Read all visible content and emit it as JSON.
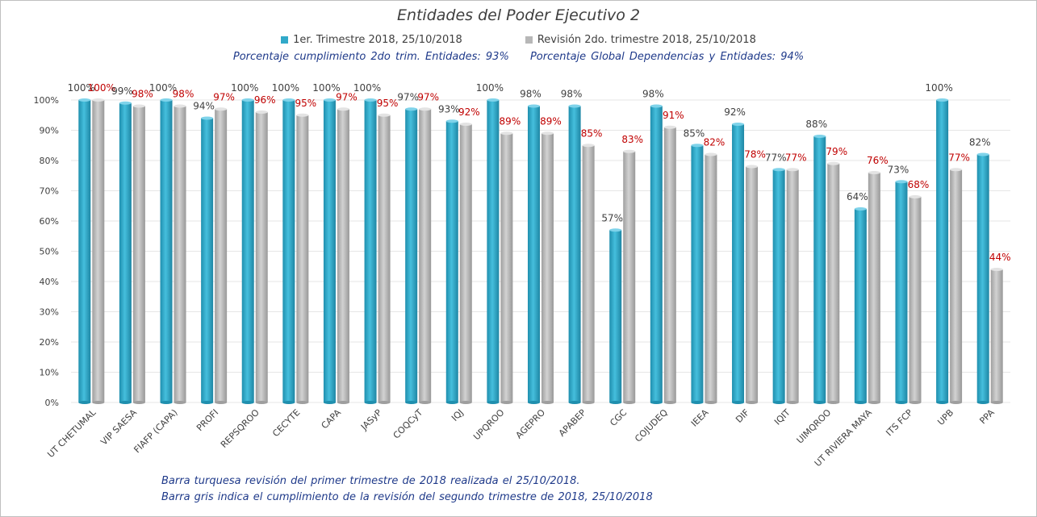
{
  "chart_data": {
    "type": "bar",
    "title": "Entidades del Poder Ejecutivo 2",
    "categories": [
      "UT CHETUMAL",
      "VIP SAESA",
      "FIAFP (CAPA)",
      "PROFI",
      "REPSQROO",
      "CECYTE",
      "CAPA",
      "JASyP",
      "COQCyT",
      "IQJ",
      "UPQROO",
      "AGEPRO",
      "APABEP",
      "CGC",
      "COJUDEQ",
      "IEEA",
      "DIF",
      "IQIT",
      "UIMQROO",
      "UT RIVIERA MAYA",
      "ITS FCP",
      "UPB",
      "PPA"
    ],
    "series": [
      {
        "name": "1er. Trimestre 2018, 25/10/2018",
        "color": "#31a9c9",
        "label_color": "#404040",
        "values": [
          100,
          99,
          100,
          94,
          100,
          100,
          100,
          100,
          97,
          93,
          100,
          98,
          98,
          57,
          98,
          85,
          92,
          77,
          88,
          64,
          73,
          100,
          82
        ],
        "labels": [
          "100%",
          "99%",
          "100%",
          "94%",
          "100%",
          "100%",
          "100%",
          "100%",
          "97%",
          "93%",
          "100%",
          "98%",
          "98%",
          "57%",
          "98%",
          "85%",
          "92%",
          "77%",
          "88%",
          "64%",
          "73%",
          "100%",
          "82%"
        ]
      },
      {
        "name": "Revisión 2do. trimestre 2018, 25/10/2018",
        "color": "#b7b7b7",
        "label_color": "#c00000",
        "values": [
          100,
          98,
          98,
          97,
          96,
          95,
          97,
          95,
          97,
          92,
          89,
          89,
          85,
          83,
          91,
          82,
          78,
          77,
          79,
          76,
          68,
          77,
          44
        ],
        "labels": [
          "100%",
          "98%",
          "98%",
          "97%",
          "96%",
          "95%",
          "97%",
          "95%",
          "97%",
          "92%",
          "89%",
          "89%",
          "85%",
          "83%",
          "91%",
          "82%",
          "78%",
          "77%",
          "79%",
          "76%",
          "68%",
          "77%",
          "44%"
        ]
      }
    ],
    "yticks": [
      "0%",
      "10%",
      "20%",
      "30%",
      "40%",
      "50%",
      "60%",
      "70%",
      "80%",
      "90%",
      "100%"
    ],
    "ylim": [
      0,
      100
    ],
    "grid": true,
    "legend_position": "top"
  },
  "summary": {
    "entidades": "Porcentaje cumplimiento 2do trim. Entidades: 93%",
    "global": "Porcentaje Global Dependencias y Entidades: 94%"
  },
  "notes": {
    "line1": "Barra turquesa revisión del primer trimestre de 2018 realizada el 25/10/2018.",
    "line2": "Barra gris indica el cumplimiento de la revisión del segundo trimestre de 2018, 25/10/2018"
  }
}
